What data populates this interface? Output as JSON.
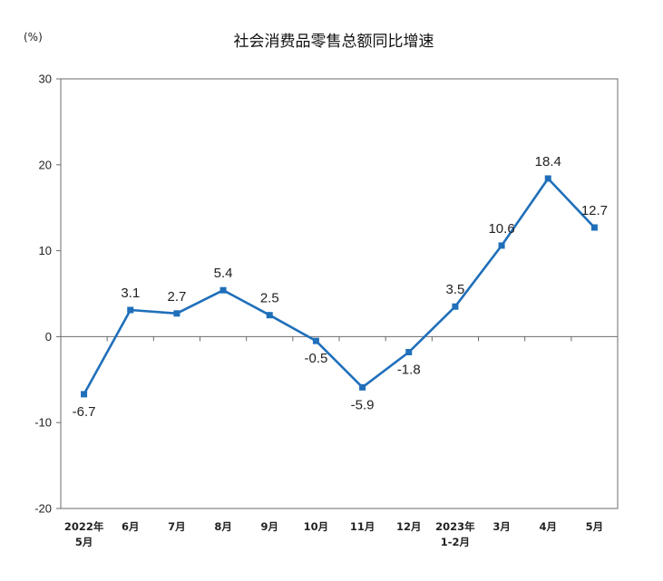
{
  "chart_data": {
    "type": "line",
    "title": "社会消费品零售总额同比增速",
    "unit": "(%)",
    "categories": [
      [
        "2022年",
        "5月"
      ],
      [
        "6月"
      ],
      [
        "7月"
      ],
      [
        "8月"
      ],
      [
        "9月"
      ],
      [
        "10月"
      ],
      [
        "11月"
      ],
      [
        "12月"
      ],
      [
        "2023年",
        "1-2月"
      ],
      [
        "3月"
      ],
      [
        "4月"
      ],
      [
        "5月"
      ]
    ],
    "series": [
      {
        "values": [
          -6.7,
          3.1,
          2.7,
          5.4,
          2.5,
          -0.5,
          -5.9,
          -1.8,
          3.5,
          10.6,
          18.4,
          12.7
        ],
        "labels": [
          "-6.7",
          "3.1",
          "2.7",
          "5.4",
          "2.5",
          "-0.5",
          "-5.9",
          "-1.8",
          "3.5",
          "10.6",
          "18.4",
          "12.7"
        ],
        "color": "#1f6fba"
      }
    ],
    "ylim": [
      -20,
      30
    ],
    "yticks": [
      "30",
      "20",
      "10",
      "0",
      "-10",
      "-20"
    ],
    "grid": false,
    "legend": "none"
  }
}
